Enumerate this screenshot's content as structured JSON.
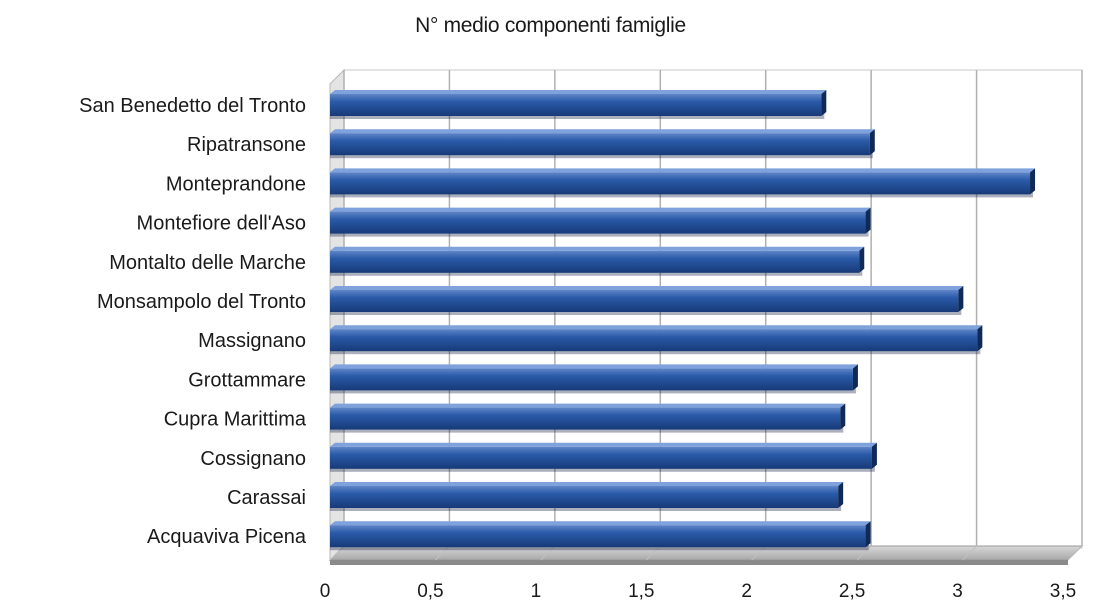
{
  "chart_data": {
    "type": "bar",
    "orientation": "horizontal",
    "title": "N° medio componenti famiglie",
    "xlabel": "",
    "ylabel": "",
    "categories": [
      "San Benedetto del Tronto",
      "Ripatransone",
      "Monteprandone",
      "Montefiore dell'Aso",
      "Montalto delle Marche",
      "Monsampolo del Tronto",
      "Massignano",
      "Grottammare",
      "Cupra Marittima",
      "Cossignano",
      "Carassai",
      "Acquaviva Picena"
    ],
    "values": [
      2.33,
      2.56,
      3.32,
      2.54,
      2.51,
      2.98,
      3.07,
      2.48,
      2.42,
      2.57,
      2.41,
      2.54
    ],
    "xlim": [
      0,
      3.5
    ],
    "x_ticks": [
      "0",
      "0,5",
      "1",
      "1,5",
      "2",
      "2,5",
      "3",
      "3,5"
    ],
    "grid": true,
    "bar_color": "#1f4e9a",
    "legend": "none"
  }
}
